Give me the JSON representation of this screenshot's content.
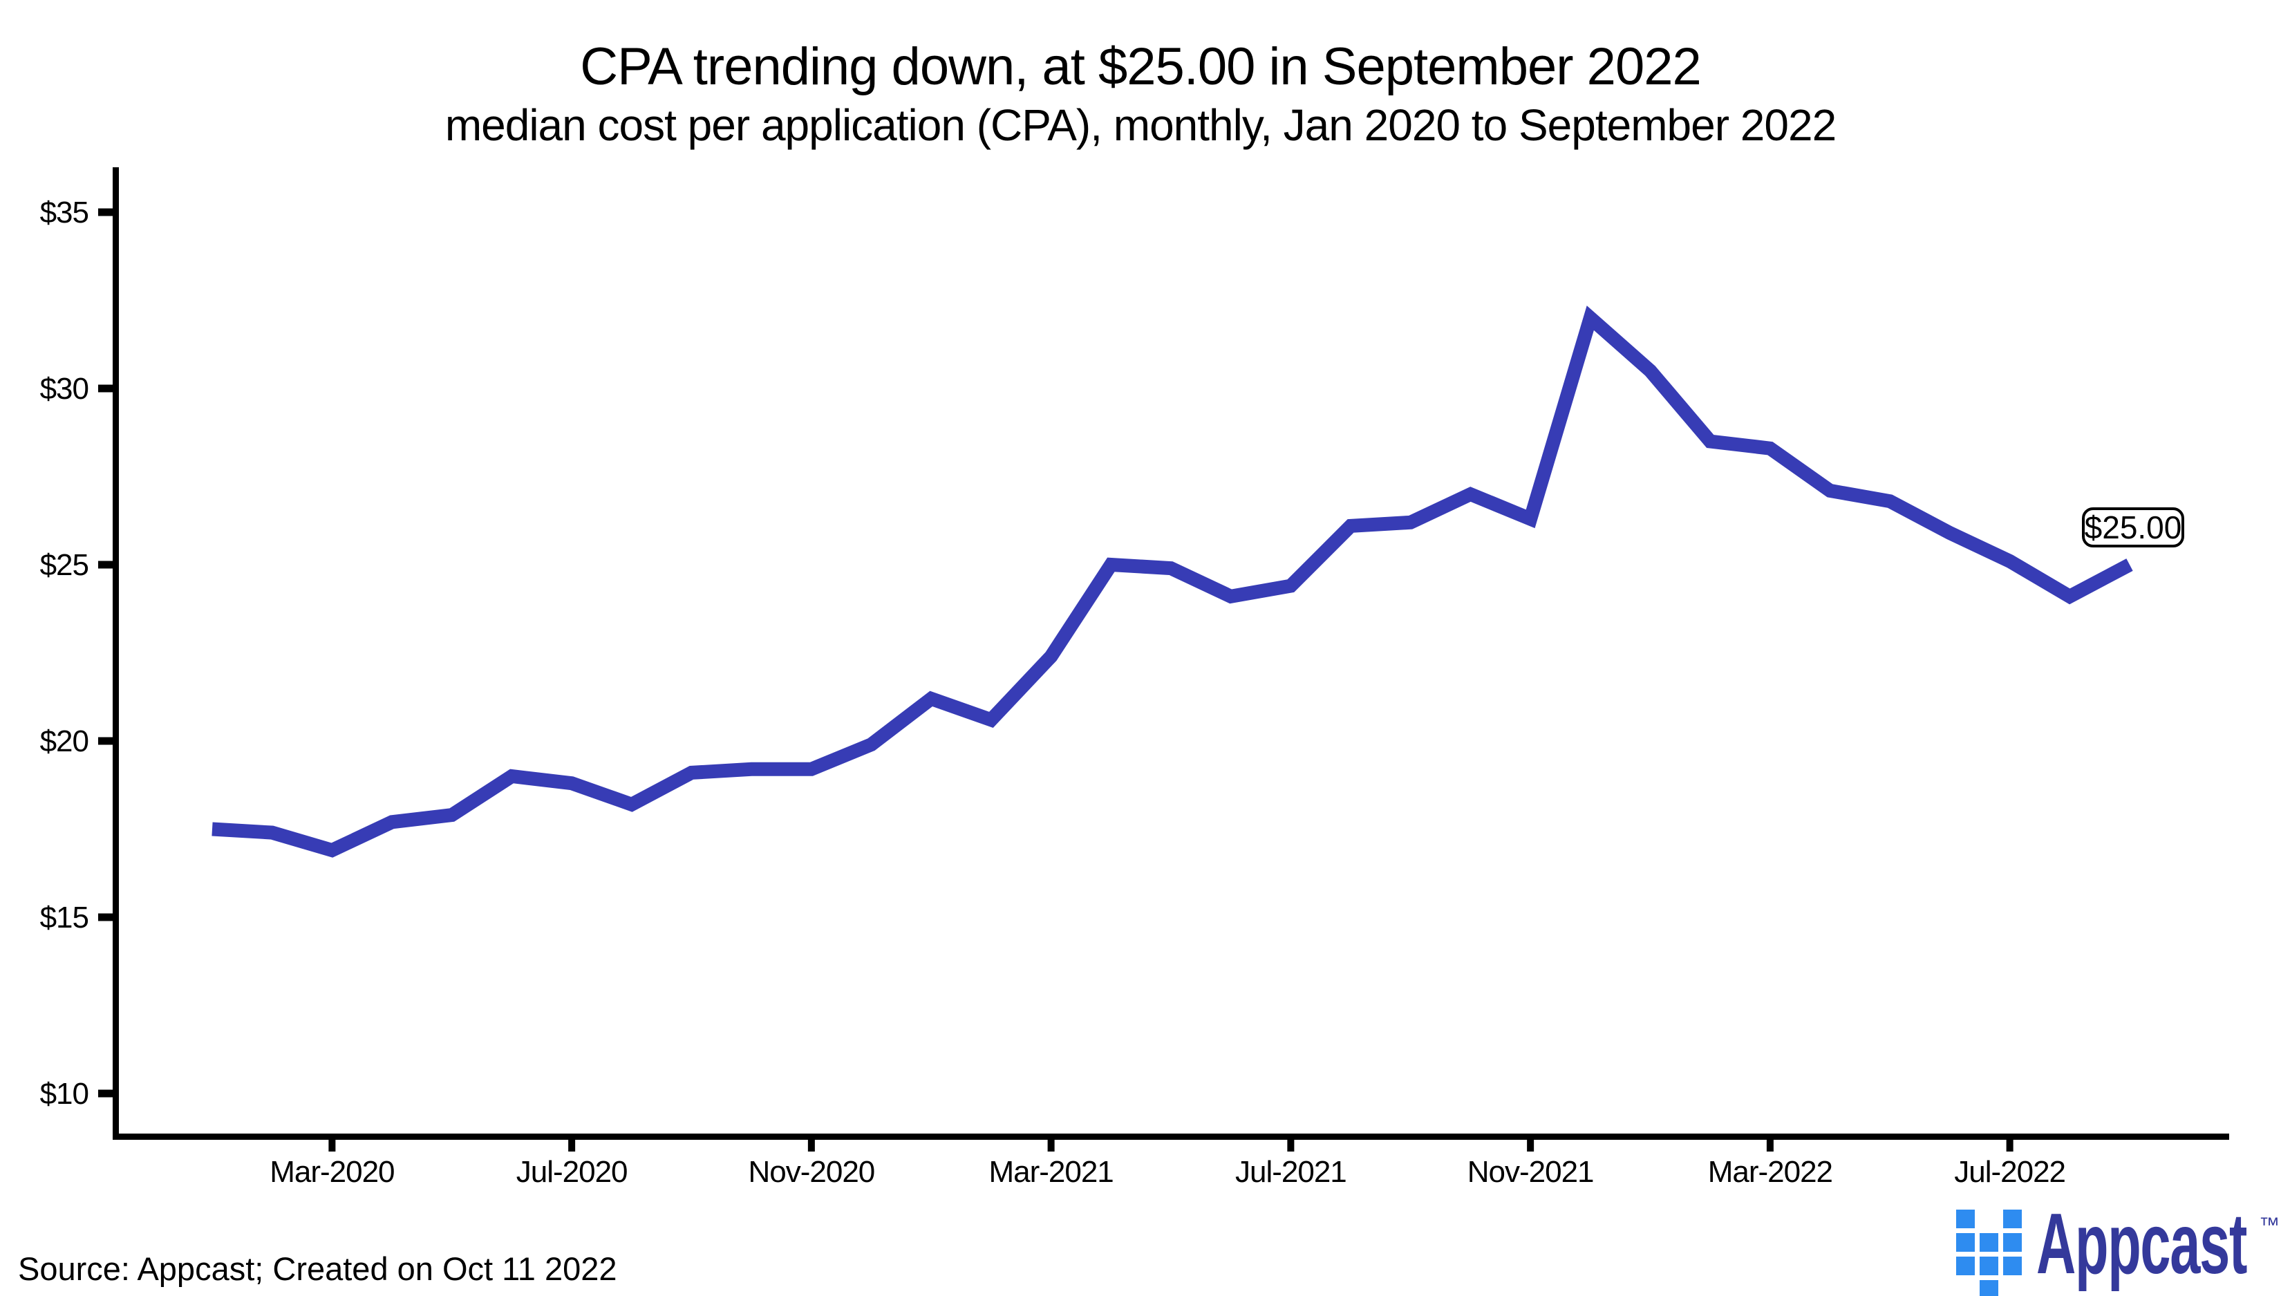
{
  "header": {
    "title": "CPA trending down, at $25.00 in September 2022",
    "subtitle": "median cost per application (CPA), monthly, Jan 2020 to September 2022"
  },
  "chart_data": {
    "type": "line",
    "title": "CPA trending down, at $25.00 in September 2022",
    "subtitle": "median cost per application (CPA), monthly, Jan 2020 to September 2022",
    "xlabel": "",
    "ylabel": "",
    "ylim": [
      9,
      36
    ],
    "grid": false,
    "legend": "none",
    "line_color": "#373CB5",
    "categories": [
      "Jan-2020",
      "Feb-2020",
      "Mar-2020",
      "Apr-2020",
      "May-2020",
      "Jun-2020",
      "Jul-2020",
      "Aug-2020",
      "Sep-2020",
      "Oct-2020",
      "Nov-2020",
      "Dec-2020",
      "Jan-2021",
      "Feb-2021",
      "Mar-2021",
      "Apr-2021",
      "May-2021",
      "Jun-2021",
      "Jul-2021",
      "Aug-2021",
      "Sep-2021",
      "Oct-2021",
      "Nov-2021",
      "Dec-2021",
      "Jan-2022",
      "Feb-2022",
      "Mar-2022",
      "Apr-2022",
      "May-2022",
      "Jun-2022",
      "Jul-2022",
      "Aug-2022",
      "Sep-2022"
    ],
    "series": [
      {
        "name": "Median cost per application (USD)",
        "values": [
          17.5,
          17.4,
          16.9,
          17.7,
          17.9,
          19.0,
          18.8,
          18.2,
          19.1,
          19.2,
          19.2,
          19.9,
          21.2,
          20.6,
          22.4,
          25.0,
          24.9,
          24.1,
          24.4,
          26.1,
          26.2,
          27.0,
          26.3,
          32.0,
          30.5,
          28.5,
          28.3,
          27.1,
          26.8,
          25.9,
          25.1,
          24.1,
          25.0
        ]
      }
    ],
    "y_ticks": [
      {
        "label": "$35",
        "value": 35
      },
      {
        "label": "$30",
        "value": 30
      },
      {
        "label": "$25",
        "value": 25
      },
      {
        "label": "$20",
        "value": 20
      },
      {
        "label": "$15",
        "value": 15
      },
      {
        "label": "$10",
        "value": 10
      }
    ],
    "x_ticks": [
      {
        "label": "Mar-2020",
        "index": 2
      },
      {
        "label": "Jul-2020",
        "index": 6
      },
      {
        "label": "Nov-2020",
        "index": 10
      },
      {
        "label": "Mar-2021",
        "index": 14
      },
      {
        "label": "Jul-2021",
        "index": 18
      },
      {
        "label": "Nov-2021",
        "index": 22
      },
      {
        "label": "Mar-2022",
        "index": 26
      },
      {
        "label": "Jul-2022",
        "index": 30
      }
    ],
    "annotation": {
      "label": "$25.00",
      "category": "Sep-2022",
      "value": 25.0
    }
  },
  "footer": {
    "source": "Source: Appcast; Created on Oct 11 2022"
  },
  "logo": {
    "wordmark": "Appcast",
    "trademark": "™"
  },
  "colors": {
    "line": "#373CB5",
    "axis": "#000000",
    "text": "#000000",
    "logo_square": "#2E8CF0",
    "logo_text": "#34399B",
    "background": "#FFFFFF"
  }
}
